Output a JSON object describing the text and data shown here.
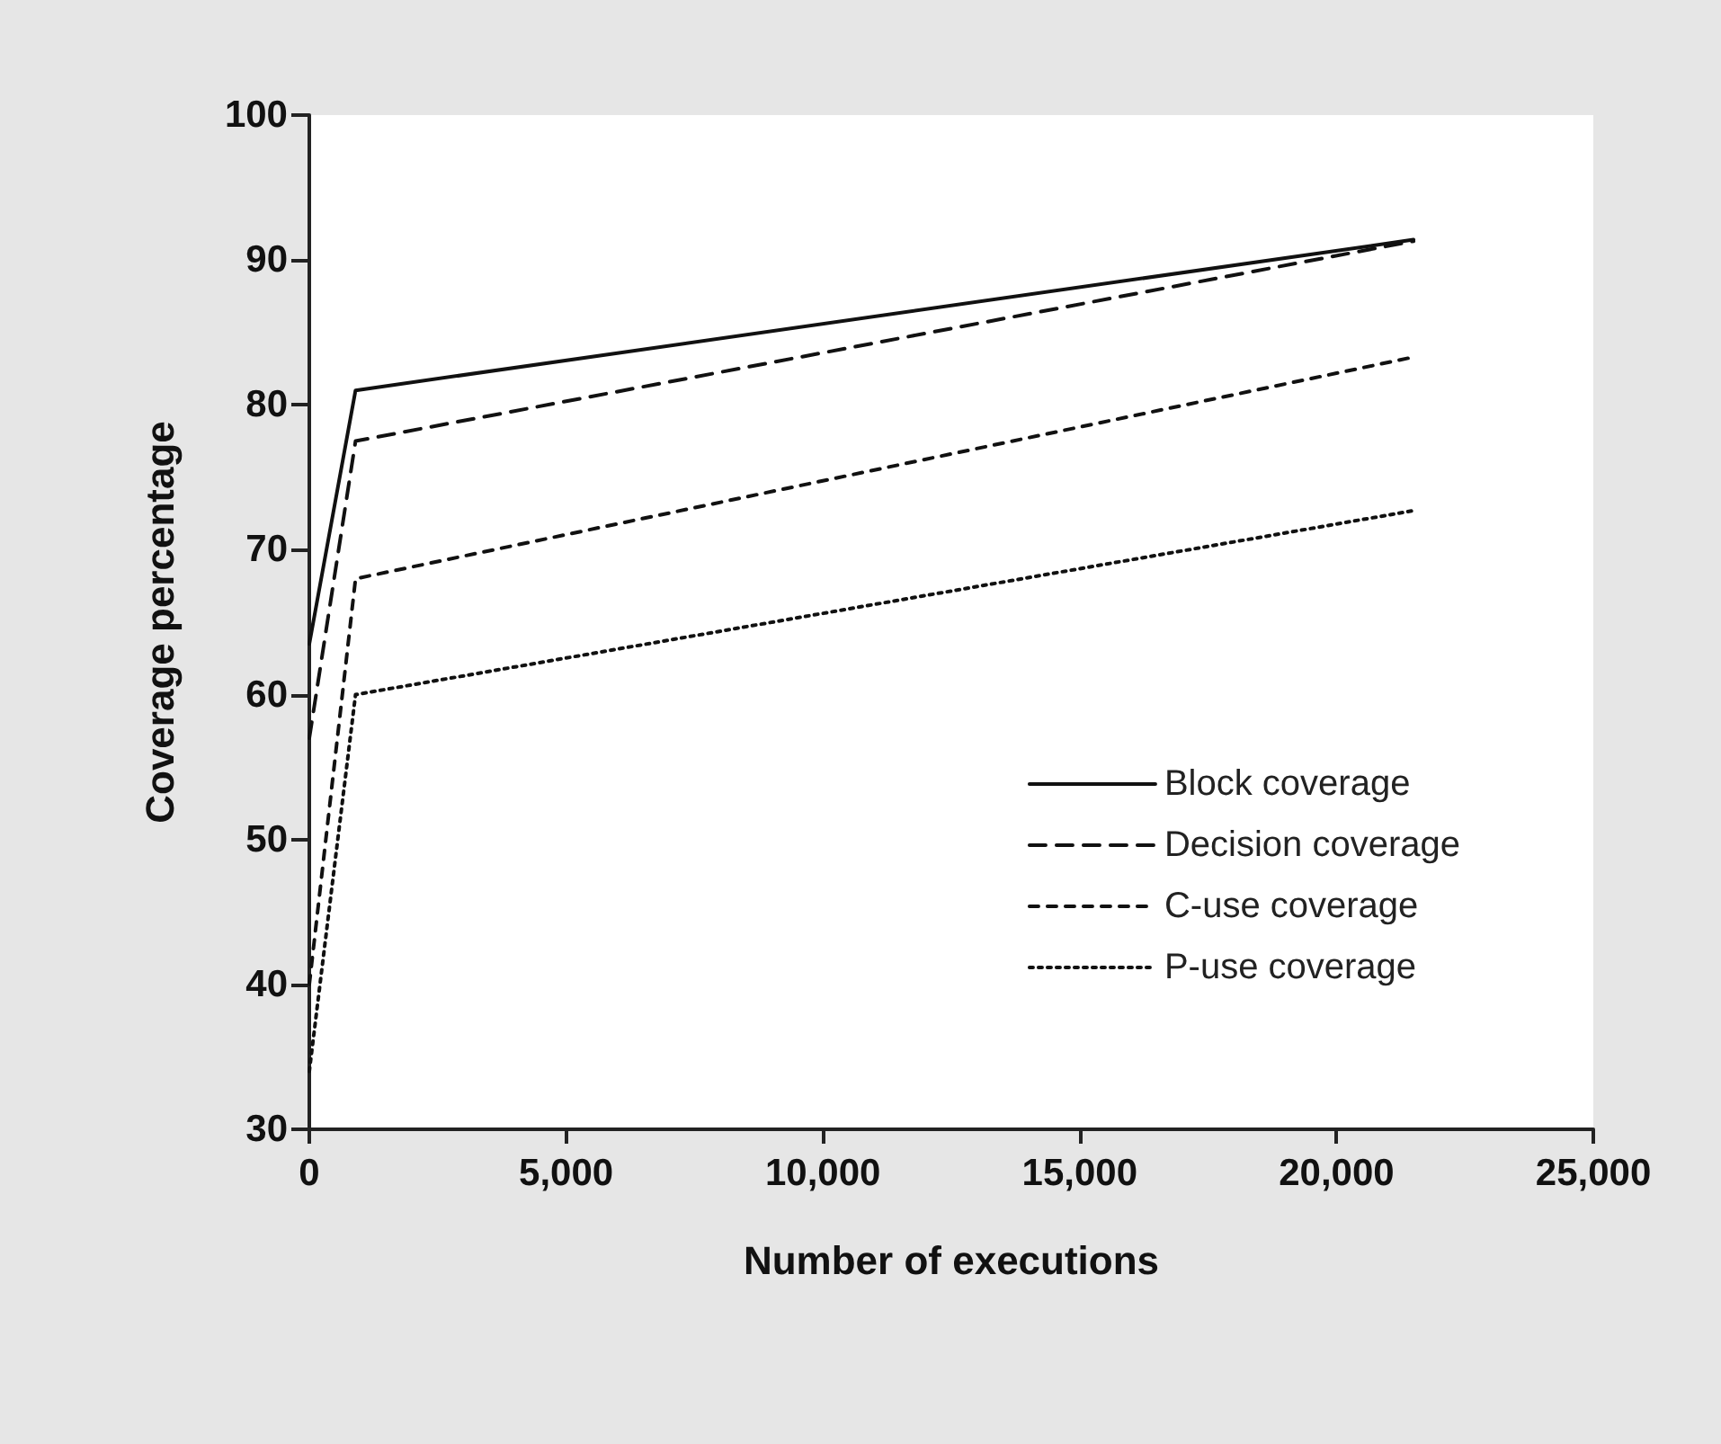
{
  "chart_data": {
    "type": "line",
    "xlabel": "Number of executions",
    "ylabel": "Coverage percentage",
    "x": [
      0,
      900,
      21500
    ],
    "series": [
      {
        "name": "Block coverage",
        "color": "#111111",
        "line_style": "solid",
        "values": [
          63.5,
          81,
          91.4
        ]
      },
      {
        "name": "Decision coverage",
        "color": "#111111",
        "line_style": "dashed",
        "values": [
          57,
          77.5,
          91.3
        ]
      },
      {
        "name": "C-use coverage",
        "color": "#111111",
        "line_style": "dashed",
        "values": [
          40,
          68,
          83.3
        ]
      },
      {
        "name": "P-use coverage",
        "color": "#111111",
        "line_style": "dotted",
        "values": [
          34,
          60,
          72.7
        ]
      }
    ],
    "xlim": [
      0,
      25000
    ],
    "xticks": [
      0,
      {
        "value": 5000,
        "label": "5,000"
      },
      {
        "value": 10000,
        "label": "10,000"
      },
      {
        "value": 15000,
        "label": "15,000"
      },
      {
        "value": 20000,
        "label": "20,000"
      },
      {
        "value": 25000,
        "label": "25,000"
      }
    ],
    "ylim": [
      30,
      100
    ],
    "yticks": [
      30,
      40,
      50,
      60,
      70,
      80,
      90,
      100
    ],
    "grid": false,
    "legend": "bottom right",
    "marker": "none"
  }
}
